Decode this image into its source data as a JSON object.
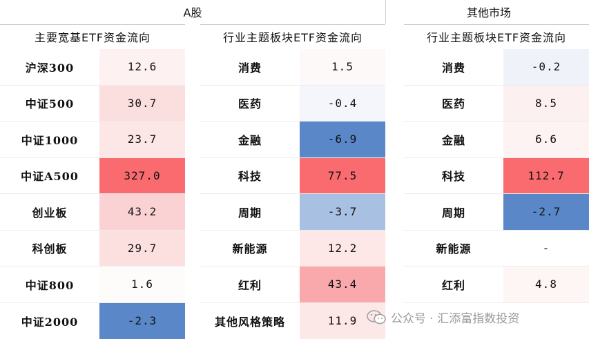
{
  "headers": {
    "a_share": "A股",
    "other_market": "其他市场"
  },
  "groups": [
    {
      "title": "主要宽基ETF资金流向",
      "rows": [
        {
          "label": "沪深300",
          "value": "12.6",
          "bg": "#fdf1f1"
        },
        {
          "label": "中证500",
          "value": "30.7",
          "bg": "#fbdede"
        },
        {
          "label": "中证1000",
          "value": "23.7",
          "bg": "#fce6e6"
        },
        {
          "label": "中证A500",
          "value": "327.0",
          "bg": "#f96b6e"
        },
        {
          "label": "创业板",
          "value": "43.2",
          "bg": "#fbd2d3"
        },
        {
          "label": "科创板",
          "value": "29.7",
          "bg": "#fce0e0"
        },
        {
          "label": "中证800",
          "value": "1.6",
          "bg": "#fefbfb"
        },
        {
          "label": "中证2000",
          "value": "-2.3",
          "bg": "#5a87c7"
        }
      ]
    },
    {
      "title": "行业主题板块ETF资金流向",
      "rows": [
        {
          "label": "消费",
          "value": "1.5",
          "bg": "#fef9f9"
        },
        {
          "label": "医药",
          "value": "-0.4",
          "bg": "#f4f6fb"
        },
        {
          "label": "金融",
          "value": "-6.9",
          "bg": "#5a87c7"
        },
        {
          "label": "科技",
          "value": "77.5",
          "bg": "#f96b6e"
        },
        {
          "label": "周期",
          "value": "-3.7",
          "bg": "#a8c0e1"
        },
        {
          "label": "新能源",
          "value": "12.2",
          "bg": "#fde7e7"
        },
        {
          "label": "红利",
          "value": "43.4",
          "bg": "#f9a9ab"
        },
        {
          "label": "其他风格策略",
          "value": "11.9",
          "bg": "#fde8e8"
        }
      ]
    },
    {
      "title": "行业主题板块ETF资金流向",
      "rows": [
        {
          "label": "消费",
          "value": "-0.2",
          "bg": "#eff3f9"
        },
        {
          "label": "医药",
          "value": "8.5",
          "bg": "#fdf0f0"
        },
        {
          "label": "金融",
          "value": "6.6",
          "bg": "#fdf3f3"
        },
        {
          "label": "科技",
          "value": "112.7",
          "bg": "#f96b6e"
        },
        {
          "label": "周期",
          "value": "-2.7",
          "bg": "#5a87c7"
        },
        {
          "label": "新能源",
          "value": "-",
          "bg": "#ffffff"
        },
        {
          "label": "红利",
          "value": "4.8",
          "bg": "#fef5f5"
        },
        {
          "label": "",
          "value": "",
          "bg": "#ffffff"
        }
      ]
    }
  ],
  "watermark": {
    "text": "公众号 · 汇添富指数投资",
    "icon": "wechat-icon"
  }
}
